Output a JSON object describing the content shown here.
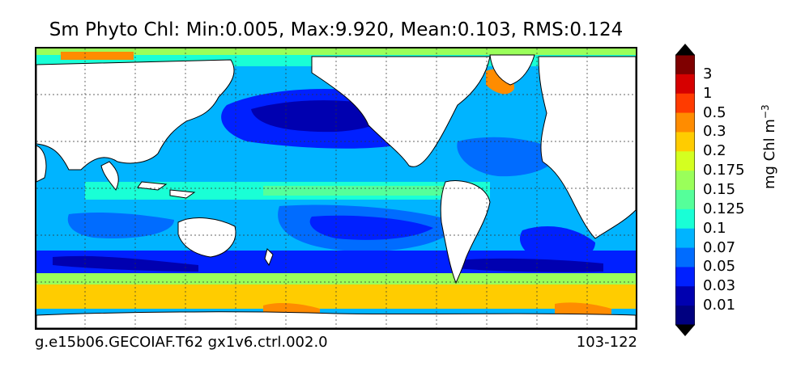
{
  "title": "Sm Phyto Chl: Min:0.005, Max:9.920, Mean:0.103, RMS:0.124",
  "footer": {
    "run_name": "g.e15b06.GECOIAF.T62 gx1v6.ctrl.002.0",
    "years": "103-122"
  },
  "colorbar": {
    "unit_text": "mg Chl m",
    "unit_exponent": "−3",
    "tick_labels": [
      "3",
      "1",
      "0.5",
      "0.3",
      "0.2",
      "0.175",
      "0.15",
      "0.125",
      "0.1",
      "0.07",
      "0.05",
      "0.03",
      "0.01"
    ],
    "colors": [
      "#7f0000",
      "#d60000",
      "#ff3b00",
      "#ff8c00",
      "#ffcc00",
      "#d4ff20",
      "#9aff5a",
      "#55ff9a",
      "#19ffd6",
      "#00b4ff",
      "#006cff",
      "#0020ff",
      "#0000b0",
      "#000080"
    ]
  },
  "map": {
    "ocean_color_scale": [
      "#0000b0",
      "#0020ff",
      "#006cff",
      "#00b4ff",
      "#19ffd6",
      "#55ff9a",
      "#9aff5a",
      "#d4ff20",
      "#ffcc00",
      "#ff8c00",
      "#ff3b00"
    ],
    "land_color": "#ffffff",
    "gridlines": "dotted"
  }
}
